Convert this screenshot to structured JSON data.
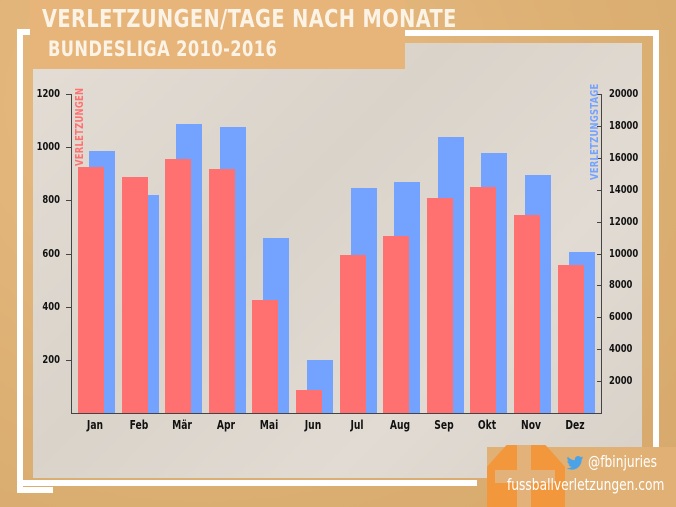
{
  "header": {
    "title": "VERLETZUNGEN/TAGE NACH MONATE",
    "subtitle": "BUNDESLIGA 2010-2016"
  },
  "footer": {
    "twitter_icon": "twitter-bird-icon",
    "handle": "@fbinjuries",
    "site": "fussballverletzungen.com",
    "logo": "orange-cross-logo-icon"
  },
  "colors": {
    "injuries": "#ff7171",
    "days": "#74a2ff",
    "background": "#e2b47a",
    "panel": "#dfd9d1"
  },
  "axes": {
    "left_title": "VERLETZUNGEN",
    "right_title": "VERLETZUNGSTAGE",
    "left_ticks": [
      "200",
      "400",
      "600",
      "800",
      "1000",
      "1200"
    ],
    "right_ticks": [
      "2000",
      "4000",
      "6000",
      "8000",
      "10000",
      "12000",
      "14000",
      "16000",
      "18000",
      "20000"
    ]
  },
  "chart_data": {
    "type": "bar",
    "title": "Verletzungen/Tage nach Monate",
    "subtitle": "Bundesliga 2010-2016",
    "categories": [
      "Jan",
      "Feb",
      "Mär",
      "Apr",
      "Mai",
      "Jun",
      "Jul",
      "Aug",
      "Sep",
      "Okt",
      "Nov",
      "Dez"
    ],
    "series": [
      {
        "name": "Verletzungen",
        "axis": "left",
        "color": "#ff7171",
        "values": [
          927,
          889,
          955,
          918,
          426,
          85,
          596,
          666,
          809,
          850,
          746,
          555
        ]
      },
      {
        "name": "Verletzungstage",
        "axis": "right",
        "color": "#74a2ff",
        "values": [
          16400,
          13650,
          18150,
          17950,
          11000,
          3300,
          14100,
          14500,
          17300,
          16300,
          14950,
          10100
        ]
      }
    ],
    "xlabel": "",
    "ylabel": "Verletzungen",
    "y2label": "Verletzungstage",
    "ylim": [
      0,
      1200
    ],
    "y2lim": [
      0,
      20000
    ],
    "grid": false,
    "legend": "axis titles (rotated, colored)"
  }
}
